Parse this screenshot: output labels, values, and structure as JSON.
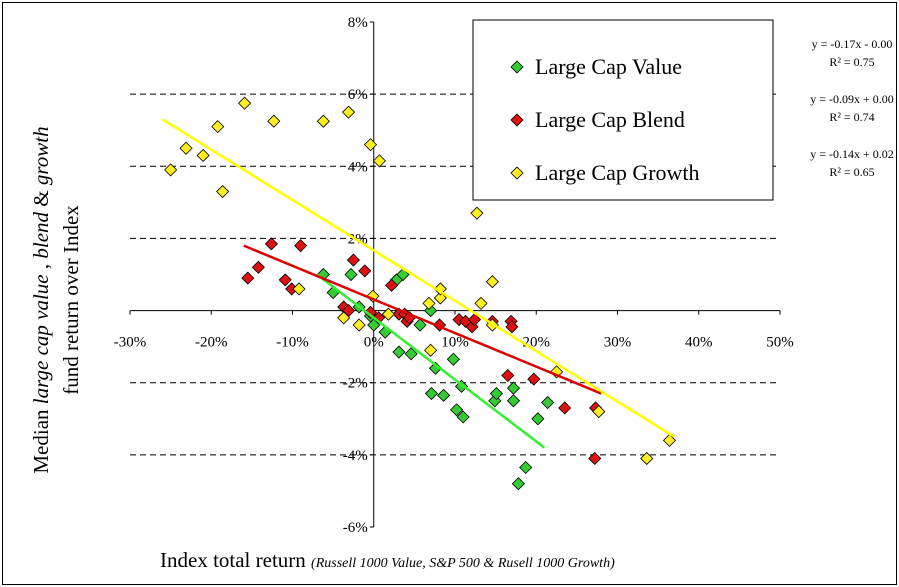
{
  "chart_data": {
    "type": "scatter",
    "xlabel": [
      "Index total return ",
      "(Russell 1000 Value, S&P 500 & Rusell 1000 Growth)"
    ],
    "ylabel": [
      [
        "Median ",
        "large cap value",
        " , ",
        "blend",
        " & ",
        "growth"
      ],
      [
        "fund return over Index"
      ]
    ],
    "xlim": [
      -30,
      50
    ],
    "ylim": [
      -6,
      8
    ],
    "xticks": [
      {
        "value": -30,
        "label": "-30%"
      },
      {
        "value": -20,
        "label": "-20%"
      },
      {
        "value": -10,
        "label": "-10%"
      },
      {
        "value": 0,
        "label": "0%"
      },
      {
        "value": 10,
        "label": "10%"
      },
      {
        "value": 20,
        "label": "20%"
      },
      {
        "value": 30,
        "label": "30%"
      },
      {
        "value": 40,
        "label": "40%"
      },
      {
        "value": 50,
        "label": "50%"
      }
    ],
    "yticks": [
      {
        "value": -6,
        "label": "-6%"
      },
      {
        "value": -4,
        "label": "-4%"
      },
      {
        "value": -2,
        "label": "-2%"
      },
      {
        "value": 2,
        "label": "2%"
      },
      {
        "value": 4,
        "label": "4%"
      },
      {
        "value": 6,
        "label": "6%"
      },
      {
        "value": 8,
        "label": "8%"
      }
    ],
    "grid": true,
    "legend": "top-right",
    "series": [
      {
        "name": "Large Cap Value",
        "color": "#33cc33",
        "line_color": "#33ee33",
        "x": [
          -6.2,
          -5.0,
          -2.8,
          -1.8,
          -0.4,
          0,
          1.4,
          2.8,
          3.6,
          3.1,
          4.6,
          5.7,
          7.0,
          7.1,
          7.6,
          8.6,
          9.8,
          10.2,
          11.0,
          10.8,
          14.9,
          15.1,
          17.2,
          17.2,
          18.7,
          17.8,
          20.2,
          21.4
        ],
        "values": [
          1.0,
          0.5,
          1.0,
          0.1,
          -0.15,
          -0.4,
          -0.6,
          0.85,
          1.0,
          -1.15,
          -1.2,
          -0.4,
          0.0,
          -2.3,
          -1.6,
          -2.35,
          -1.35,
          -2.75,
          -2.95,
          -2.1,
          -2.5,
          -2.3,
          -2.5,
          -2.15,
          -4.35,
          -4.8,
          -3.0,
          -2.55
        ],
        "trend": {
          "x": [
            -7,
            21
          ],
          "y": [
            1.0,
            -3.8
          ],
          "equation": "y = -0.17x - 0.00",
          "r2": "R² = 0.75"
        }
      },
      {
        "name": "Large Cap Blend",
        "color": "#dd1111",
        "line_color": "#dd0000",
        "x": [
          -15.5,
          -14.2,
          -12.6,
          -10.9,
          -10.1,
          -9.0,
          -2.5,
          -1.1,
          -3.7,
          -3.1,
          -0.4,
          0.6,
          2.2,
          3.1,
          3.8,
          4.1,
          4.4,
          8.1,
          10.5,
          11.3,
          12.1,
          12.4,
          14.6,
          16.9,
          17.0,
          16.5,
          19.7,
          23.5,
          27.2,
          27.3
        ],
        "values": [
          0.9,
          1.2,
          1.85,
          0.85,
          0.6,
          1.8,
          1.4,
          1.1,
          0.1,
          0,
          -0.05,
          -0.2,
          0.7,
          -0.1,
          -0.1,
          -0.3,
          -0.2,
          -0.4,
          -0.25,
          -0.3,
          -0.45,
          -0.25,
          -0.3,
          -0.3,
          -0.45,
          -1.8,
          -1.9,
          -2.7,
          -4.1,
          -2.7
        ],
        "trend": {
          "x": [
            -16,
            28
          ],
          "y": [
            1.8,
            -2.3
          ],
          "equation": "y = -0.09x + 0.00",
          "r2": "R² = 0.74"
        }
      },
      {
        "name": "Large Cap Growth",
        "color": "#ffee22",
        "line_color": "#ffff00",
        "x": [
          -25,
          -23.1,
          -21,
          -18.6,
          -19.2,
          -15.9,
          -12.3,
          -9.2,
          -6.2,
          -3.1,
          -0.4,
          0.7,
          -3.7,
          -1.8,
          -0.1,
          1.8,
          6.8,
          8.2,
          8.2,
          7.0,
          12.7,
          13.2,
          14.6,
          14.6,
          22.5,
          27.7,
          33.6,
          36.4
        ],
        "values": [
          3.9,
          4.5,
          4.3,
          3.3,
          5.1,
          5.75,
          5.25,
          0.6,
          5.25,
          5.5,
          4.6,
          4.15,
          -0.2,
          -0.4,
          0.4,
          -0.1,
          0.2,
          0.35,
          0.6,
          -1.1,
          2.7,
          0.2,
          0.8,
          -0.4,
          -1.7,
          -2.8,
          -4.1,
          -3.6
        ],
        "trend": {
          "x": [
            -26,
            37
          ],
          "y": [
            5.3,
            -3.5
          ],
          "equation": "y = -0.14x + 0.02",
          "r2": "R² = 0.65"
        }
      }
    ]
  }
}
